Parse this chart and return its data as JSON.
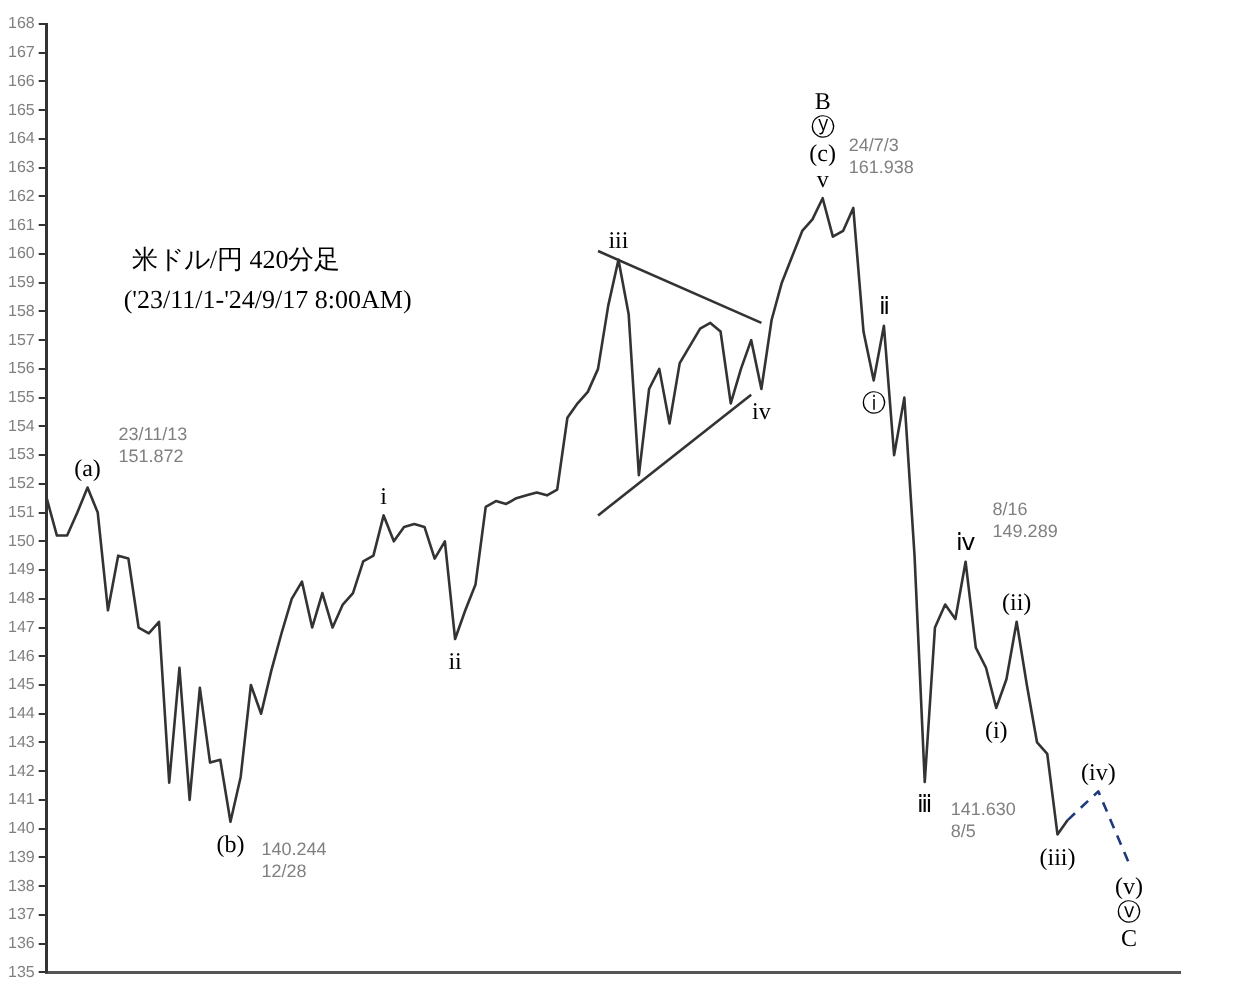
{
  "chart_data": {
    "type": "line",
    "title": "米ドル/円 420分足",
    "subtitle": "('23/11/1-'24/9/17 8:00AM)",
    "categories": [
      null,
      null,
      null,
      null,
      null,
      null,
      null,
      null,
      null,
      null,
      null,
      null,
      null,
      null,
      null,
      null,
      null,
      null,
      null,
      null,
      null,
      null,
      null,
      null,
      null,
      null,
      null,
      null,
      null,
      null,
      null,
      null,
      null,
      null,
      null,
      null,
      null,
      null,
      null,
      null,
      null,
      null,
      null,
      null,
      null,
      null,
      null,
      null,
      null,
      null,
      null,
      null,
      null,
      null,
      null,
      null,
      null,
      null,
      null,
      null,
      null,
      null,
      null,
      null,
      null,
      null,
      null,
      null,
      null,
      null,
      null,
      null,
      null,
      null,
      null,
      null,
      null,
      null,
      null,
      null,
      null,
      null,
      null,
      null,
      null,
      null,
      null,
      null,
      null,
      null,
      null,
      null,
      null,
      null,
      null,
      null,
      null,
      null,
      null,
      null,
      null,
      null,
      null,
      null,
      null,
      null,
      null,
      null,
      null,
      null,
      null,
      null
    ],
    "series": [
      {
        "color": "#333333",
        "line_style": "solid",
        "values": [
          151.5,
          150.2,
          150.2,
          151.0,
          151.872,
          151.0,
          147.6,
          149.5,
          149.4,
          147.0,
          146.8,
          147.2,
          141.6,
          145.6,
          141.0,
          144.9,
          142.3,
          142.4,
          140.244,
          141.8,
          145.0,
          144.0,
          145.5,
          146.8,
          148.0,
          148.6,
          147.0,
          148.2,
          147.0,
          147.8,
          148.2,
          149.3,
          149.5,
          150.9,
          150.0,
          150.5,
          150.6,
          150.5,
          149.4,
          150.0,
          146.6,
          147.6,
          148.5,
          151.2,
          151.4,
          151.3,
          151.5,
          151.6,
          151.7,
          151.6,
          151.8,
          154.3,
          154.8,
          155.2,
          156.0,
          158.2,
          159.8,
          157.9,
          152.3,
          155.3,
          156.0,
          154.1,
          156.2,
          156.8,
          157.4,
          157.6,
          157.3,
          154.8,
          156.0,
          157.0,
          155.3,
          157.7,
          159.0,
          159.9,
          160.8,
          161.2,
          161.938,
          160.6,
          160.8,
          161.6,
          157.3,
          155.6,
          157.5,
          153.0,
          155.0,
          149.5,
          141.63,
          147.0,
          147.8,
          147.3,
          149.289,
          146.3,
          145.6,
          144.2,
          145.2,
          147.2,
          145.0,
          143.0,
          142.6,
          139.8,
          140.3,
          null,
          null,
          null,
          null,
          null,
          null,
          null,
          null,
          null,
          null,
          null
        ],
        "value_labels": [
          null,
          null,
          null,
          null,
          [
            "(a)",
            "23/11/13\n151.872"
          ],
          null,
          null,
          null,
          null,
          null,
          null,
          null,
          null,
          null,
          null,
          null,
          null,
          null,
          [
            "(b)",
            "140.244\n12/28"
          ],
          null,
          null,
          null,
          null,
          null,
          null,
          null,
          null,
          null,
          null,
          null,
          null,
          null,
          null,
          "i",
          null,
          null,
          null,
          null,
          null,
          null,
          "ii",
          null,
          null,
          null,
          null,
          null,
          null,
          null,
          null,
          null,
          null,
          null,
          null,
          null,
          null,
          null,
          "iii",
          null,
          null,
          null,
          null,
          null,
          null,
          null,
          null,
          null,
          null,
          null,
          null,
          null,
          "iv",
          null,
          null,
          null,
          null,
          null,
          [
            "B\nⓨ\n(c)\nv",
            "24/7/3\n161.938"
          ],
          null,
          null,
          null,
          null,
          "ⓘ",
          "ⅱ",
          null,
          null,
          null,
          [
            "ⅲ",
            "141.630\n8/5"
          ],
          null,
          null,
          null,
          [
            "ⅳ",
            "8/16\n149.289"
          ],
          null,
          null,
          "(i)",
          null,
          "(ii)",
          null,
          null,
          null,
          "(iii)",
          null,
          null,
          null,
          null,
          null,
          null,
          null,
          null,
          null,
          null,
          null,
          null
        ]
      },
      {
        "color": "#333333",
        "line_style": "solid",
        "values": [
          null,
          null,
          null,
          null,
          null,
          null,
          null,
          null,
          null,
          null,
          null,
          null,
          null,
          null,
          null,
          null,
          null,
          null,
          null,
          null,
          null,
          null,
          null,
          null,
          null,
          null,
          null,
          null,
          null,
          null,
          null,
          null,
          null,
          null,
          null,
          null,
          null,
          null,
          null,
          null,
          null,
          null,
          null,
          null,
          null,
          null,
          null,
          null,
          null,
          null,
          null,
          null,
          null,
          null,
          160.1,
          null,
          null,
          null,
          null,
          null,
          null,
          null,
          null,
          null,
          null,
          null,
          null,
          null,
          null,
          null,
          157.6,
          null,
          null,
          null,
          null,
          null,
          null,
          null,
          null,
          null,
          null,
          null,
          null,
          null,
          null,
          null,
          null,
          null,
          null,
          null,
          null,
          null,
          null,
          null,
          null,
          null,
          null,
          null,
          null,
          null,
          null,
          null,
          null,
          null,
          null,
          null,
          null,
          null,
          null,
          null,
          null,
          null
        ]
      },
      {
        "color": "#333333",
        "line_style": "solid",
        "values": [
          null,
          null,
          null,
          null,
          null,
          null,
          null,
          null,
          null,
          null,
          null,
          null,
          null,
          null,
          null,
          null,
          null,
          null,
          null,
          null,
          null,
          null,
          null,
          null,
          null,
          null,
          null,
          null,
          null,
          null,
          null,
          null,
          null,
          null,
          null,
          null,
          null,
          null,
          null,
          null,
          null,
          null,
          null,
          null,
          null,
          null,
          null,
          null,
          null,
          null,
          null,
          null,
          null,
          null,
          150.9,
          null,
          null,
          null,
          null,
          null,
          null,
          null,
          null,
          null,
          null,
          null,
          null,
          null,
          null,
          155.1,
          null,
          null,
          null,
          null,
          null,
          null,
          null,
          null,
          null,
          null,
          null,
          null,
          null,
          null,
          null,
          null,
          null,
          null,
          null,
          null,
          null,
          null,
          null,
          null,
          null,
          null,
          null,
          null,
          null,
          null,
          null,
          null,
          null,
          null,
          null,
          null,
          null,
          null,
          null,
          null,
          null,
          null
        ]
      },
      {
        "color": "#1f3a7a",
        "line_style": "dashed",
        "values": [
          null,
          null,
          null,
          null,
          null,
          null,
          null,
          null,
          null,
          null,
          null,
          null,
          null,
          null,
          null,
          null,
          null,
          null,
          null,
          null,
          null,
          null,
          null,
          null,
          null,
          null,
          null,
          null,
          null,
          null,
          null,
          null,
          null,
          null,
          null,
          null,
          null,
          null,
          null,
          null,
          null,
          null,
          null,
          null,
          null,
          null,
          null,
          null,
          null,
          null,
          null,
          null,
          null,
          null,
          null,
          null,
          null,
          null,
          null,
          null,
          null,
          null,
          null,
          null,
          null,
          null,
          null,
          null,
          null,
          null,
          null,
          null,
          null,
          null,
          null,
          null,
          null,
          null,
          null,
          null,
          null,
          null,
          null,
          null,
          null,
          null,
          null,
          null,
          null,
          null,
          null,
          null,
          null,
          null,
          null,
          null,
          null,
          null,
          null,
          null,
          140.3,
          null,
          null,
          141.3,
          null,
          null,
          138.8,
          null,
          null,
          null,
          null,
          null
        ],
        "value_labels": [
          null,
          null,
          null,
          null,
          null,
          null,
          null,
          null,
          null,
          null,
          null,
          null,
          null,
          null,
          null,
          null,
          null,
          null,
          null,
          null,
          null,
          null,
          null,
          null,
          null,
          null,
          null,
          null,
          null,
          null,
          null,
          null,
          null,
          null,
          null,
          null,
          null,
          null,
          null,
          null,
          null,
          null,
          null,
          null,
          null,
          null,
          null,
          null,
          null,
          null,
          null,
          null,
          null,
          null,
          null,
          null,
          null,
          null,
          null,
          null,
          null,
          null,
          null,
          null,
          null,
          null,
          null,
          null,
          null,
          null,
          null,
          null,
          null,
          null,
          null,
          null,
          null,
          null,
          null,
          null,
          null,
          null,
          null,
          null,
          null,
          null,
          null,
          null,
          null,
          null,
          null,
          null,
          null,
          null,
          null,
          null,
          null,
          null,
          null,
          null,
          null,
          null,
          null,
          "(iv)",
          null,
          null,
          "(v)\nⓥ\nC",
          null,
          null,
          null,
          null,
          null
        ]
      }
    ],
    "ylim": [
      135,
      168
    ],
    "yticks": [
      135,
      136,
      137,
      138,
      139,
      140,
      141,
      142,
      143,
      144,
      145,
      146,
      147,
      148,
      149,
      150,
      151,
      152,
      153,
      154,
      155,
      156,
      157,
      158,
      159,
      160,
      161,
      162,
      163,
      164,
      165,
      166,
      167,
      168
    ],
    "tick_labels": "y",
    "grid": false,
    "legend": false,
    "marker": "none"
  }
}
